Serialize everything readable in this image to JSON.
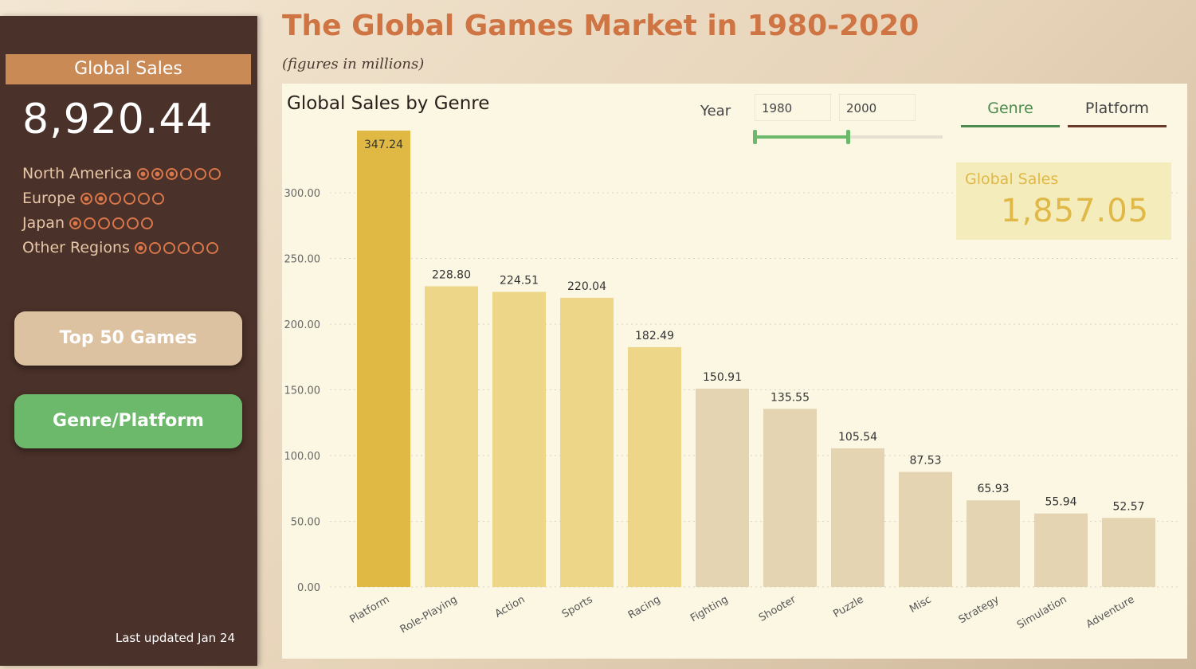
{
  "sidebar": {
    "header": "Global Sales",
    "total": "8,920.44",
    "regions": [
      {
        "name": "North America",
        "filled": 3,
        "total": 6
      },
      {
        "name": "Europe",
        "filled": 2,
        "total": 6
      },
      {
        "name": "Japan",
        "filled": 1,
        "total": 6
      },
      {
        "name": "Other Regions",
        "filled": 1,
        "total": 6
      }
    ],
    "buttons": {
      "top50": "Top 50 Games",
      "genre_platform": "Genre/Platform"
    },
    "updated": "Last updated Jan 24"
  },
  "header": {
    "title": "The Global Games Market in 1980-2020",
    "subtitle": "(figures in millions)"
  },
  "panel": {
    "year_label": "Year",
    "year_from": "1980",
    "year_to": "2000",
    "tabs": [
      "Genre",
      "Platform"
    ],
    "card_label": "Global Sales",
    "card_value": "1,857.05"
  },
  "chart_data": {
    "type": "bar",
    "title": "Global Sales by Genre",
    "categories": [
      "Platform",
      "Role-Playing",
      "Action",
      "Sports",
      "Racing",
      "Fighting",
      "Shooter",
      "Puzzle",
      "Misc",
      "Strategy",
      "Simulation",
      "Adventure"
    ],
    "values": [
      347.24,
      228.8,
      224.51,
      220.04,
      182.49,
      150.91,
      135.55,
      105.54,
      87.53,
      65.93,
      55.94,
      52.57
    ],
    "value_labels": [
      "347.24",
      "228.80",
      "224.51",
      "220.04",
      "182.49",
      "150.91",
      "135.55",
      "105.54",
      "87.53",
      "65.93",
      "55.94",
      "52.57"
    ],
    "yticks": [
      "0.00",
      "50.00",
      "100.00",
      "150.00",
      "200.00",
      "250.00",
      "300.00"
    ],
    "ylim": [
      0,
      347.24
    ],
    "grid": true,
    "colors": {
      "highlight": "#dfb944",
      "mid": "#edd688",
      "low": "#e5d4b1"
    },
    "color_groups": [
      "highlight",
      "mid",
      "mid",
      "mid",
      "mid",
      "low",
      "low",
      "low",
      "low",
      "low",
      "low",
      "low"
    ]
  }
}
